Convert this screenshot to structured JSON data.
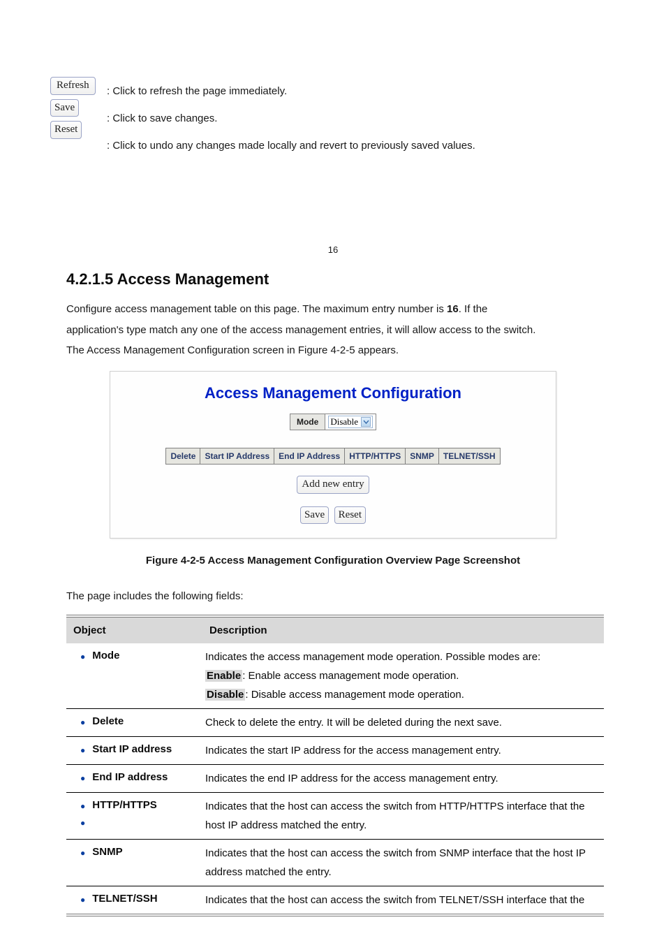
{
  "upper_buttons": {
    "refresh": "Refresh",
    "save": "Save",
    "reset": "Reset"
  },
  "body_paragraphs": {
    "p1": ": Click to refresh the page immediately.",
    "p2": ": Click to save changes.",
    "p3": ": Click to undo any changes made locally and revert to previously saved values."
  },
  "page_number": "16",
  "section_title": "4.2.1.5 Access Management",
  "intro": {
    "line1": "Configure access management table on this page. The maximum entry number is ",
    "bold_num": "16",
    "line1b": ". If the",
    "line2": "application's type match any one of the access management entries, it will allow access to the switch.",
    "line3": "The Access Management Configuration screen in Figure 4-2-5 appears."
  },
  "panel": {
    "title": "Access Management Configuration",
    "mode_label": "Mode",
    "mode_value": "Disable",
    "columns": [
      "Delete",
      "Start IP Address",
      "End IP Address",
      "HTTP/HTTPS",
      "SNMP",
      "TELNET/SSH"
    ],
    "add_label": "Add new entry",
    "save_label": "Save",
    "reset_label": "Reset"
  },
  "figure_caption": "Figure 4-2-5 Access Management Configuration Overview Page Screenshot",
  "table_intro": "The page includes the following fields:",
  "spec_header": {
    "object": "Object",
    "description": "Description"
  },
  "rows": [
    {
      "label": "Mode",
      "desc_lines": [
        "Indicates the access management mode operation. Possible modes are:",
        "<hl>Enable</hl>: Enable access management mode operation.",
        "<hl>Disable</hl>: Disable access management mode operation."
      ]
    },
    {
      "label": "Delete",
      "desc_lines": [
        "Check to delete the entry. It will be deleted during the next save."
      ]
    },
    {
      "label": "Start IP address",
      "desc_lines": [
        "Indicates the start IP address for the access management entry."
      ]
    },
    {
      "label": "End IP address",
      "desc_lines": [
        "Indicates the end IP address for the access management entry."
      ]
    },
    {
      "label": "HTTP/HTTPS",
      "label2": "",
      "desc_lines": [
        "Indicates that the host can access the switch from HTTP/HTTPS interface that the host IP address matched the entry."
      ]
    },
    {
      "label": "SNMP",
      "desc_lines": [
        "Indicates that the host can access the switch from SNMP interface that the host IP",
        "address matched the entry."
      ]
    },
    {
      "label": "TELNET/SSH",
      "desc_lines": [
        "Indicates that the host can access the switch from TELNET/SSH interface that the"
      ]
    }
  ]
}
